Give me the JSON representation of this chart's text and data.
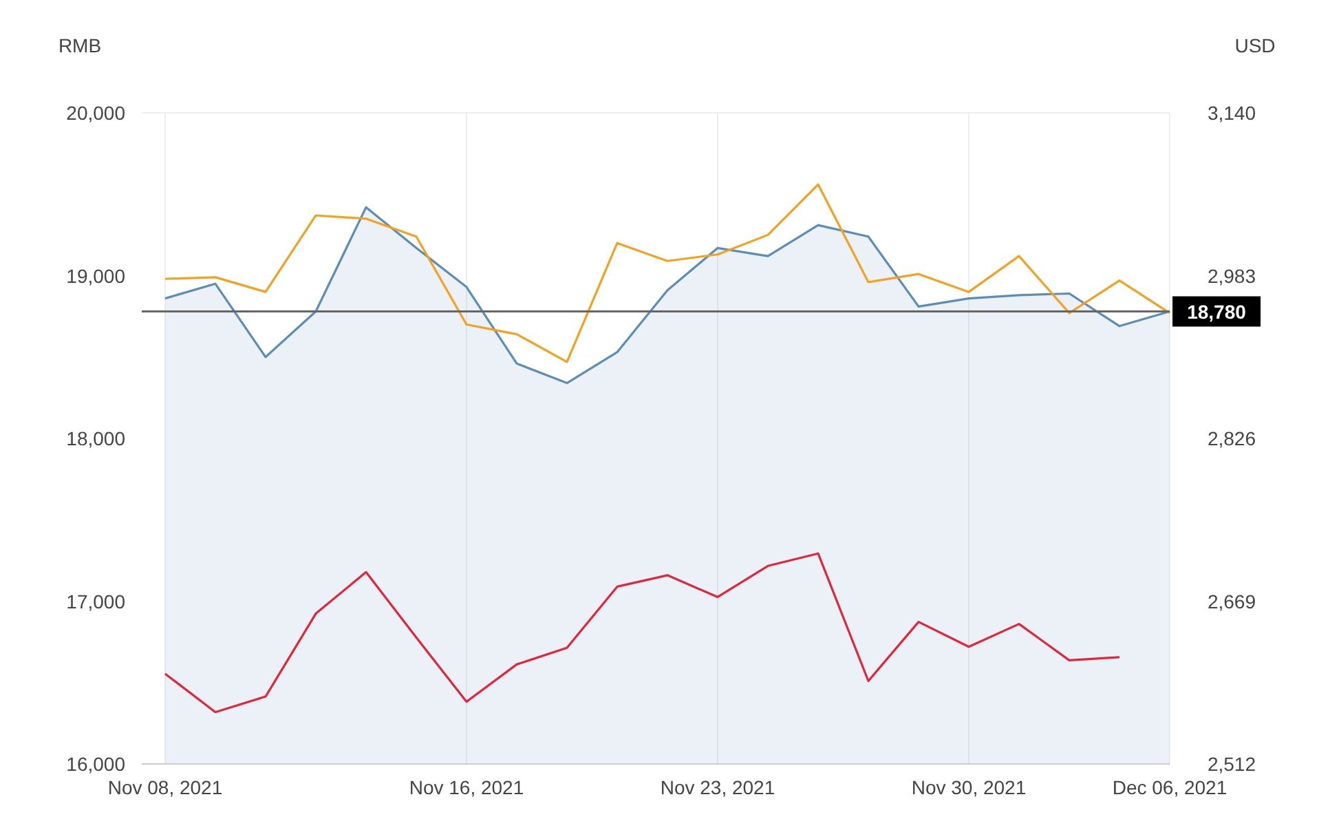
{
  "chart_data": {
    "type": "line",
    "ylabel": "RMB",
    "y2label": "USD",
    "categories": [
      "Nov 08, 2021",
      null,
      null,
      null,
      null,
      null,
      "Nov 16, 2021",
      null,
      null,
      null,
      null,
      "Nov 23, 2021",
      null,
      null,
      null,
      null,
      "Nov 30, 2021",
      null,
      null,
      null,
      "Dec 06, 2021"
    ],
    "series": [
      {
        "type": "area",
        "color": "#5b8db8",
        "values": [
          18860,
          18950,
          18500,
          18780,
          19420,
          19170,
          18930,
          18460,
          18340,
          18530,
          18910,
          19170,
          19120,
          19310,
          19240,
          18810,
          18860,
          18880,
          18890,
          18690,
          18780
        ]
      },
      {
        "color": "#f5a020",
        "values": [
          18980,
          18990,
          18900,
          19370,
          19350,
          19240,
          18700,
          18640,
          18470,
          19200,
          19090,
          19130,
          19250,
          19560,
          18960,
          19010,
          18900,
          19120,
          18770,
          18970,
          18770
        ]
      },
      {
        "color": "#e0263a",
        "axis": "y2",
        "values": [
          2599,
          2562,
          2577,
          2657,
          2697,
          2634,
          2572,
          2608,
          2624,
          2683,
          2694,
          2673,
          2703,
          2715,
          2592,
          2649,
          2625,
          2647,
          2612,
          2615,
          null
        ]
      }
    ],
    "ylim": [
      16000,
      20000
    ],
    "yticks": [
      {
        "value": 16000,
        "label": "16,000"
      },
      {
        "value": 17000,
        "label": "17,000"
      },
      {
        "value": 18000,
        "label": "18,000"
      },
      {
        "value": 19000,
        "label": "19,000"
      },
      {
        "value": 20000,
        "label": "20,000"
      }
    ],
    "y2lim": [
      2512,
      3140
    ],
    "y2ticks": [
      {
        "value": 2512,
        "label": "2,512"
      },
      {
        "value": 2669,
        "label": "2,669"
      },
      {
        "value": 2826,
        "label": "2,826"
      },
      {
        "value": 2983,
        "label": "2,983"
      },
      {
        "value": 3140,
        "label": "3,140"
      }
    ],
    "ref_lines": [
      {
        "axis": "y",
        "value": 18780,
        "label": "18,780",
        "color": "#666666"
      }
    ],
    "grid": "x",
    "marker": "none",
    "line_style": "solid"
  }
}
